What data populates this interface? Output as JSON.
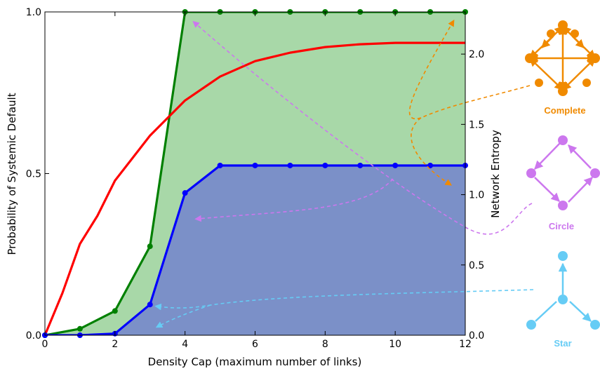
{
  "chart_data": {
    "type": "line",
    "xlabel": "Density Cap (maximum number of links)",
    "ylabel": "Probability of Systemic Default",
    "y2label": "Network Entropy",
    "xlim": [
      0,
      12
    ],
    "ylim": [
      0,
      1
    ],
    "y2lim": [
      0,
      2.3
    ],
    "xticks": [
      "0",
      "2",
      "4",
      "6",
      "8",
      "10",
      "12"
    ],
    "yticks": [
      "0.0",
      "0.5",
      "1.0"
    ],
    "y2ticks": [
      "0.0",
      "0.5",
      "1.0",
      "1.5",
      "2.0"
    ],
    "series": [
      {
        "axis": "left",
        "color": "#008000",
        "fill": "#a8d8a8",
        "markers": true,
        "x": [
          0,
          1,
          2,
          3,
          4,
          5,
          6,
          7,
          8,
          9,
          10,
          11,
          12
        ],
        "y": [
          0,
          0.02,
          0.075,
          0.275,
          1.0,
          1.0,
          1.0,
          1.0,
          1.0,
          1.0,
          1.0,
          1.0,
          1.0
        ]
      },
      {
        "axis": "left",
        "color": "#0000ff",
        "fill": "#7b90c8",
        "markers": true,
        "x": [
          0,
          1,
          2,
          3,
          4,
          5,
          6,
          7,
          8,
          9,
          10,
          11,
          12
        ],
        "y": [
          0,
          0,
          0.005,
          0.095,
          0.44,
          0.525,
          0.525,
          0.525,
          0.525,
          0.525,
          0.525,
          0.525,
          0.525
        ]
      },
      {
        "axis": "right",
        "color": "#ff0000",
        "markers": false,
        "x": [
          0,
          0.5,
          1,
          1.5,
          2,
          3,
          4,
          5,
          6,
          7,
          8,
          9,
          10,
          11,
          12
        ],
        "y": [
          0,
          0.3,
          0.65,
          0.85,
          1.1,
          1.42,
          1.67,
          1.84,
          1.95,
          2.01,
          2.05,
          2.07,
          2.08,
          2.08,
          2.08
        ]
      }
    ]
  },
  "networks": [
    {
      "label": "Complete",
      "color": "#f08a00"
    },
    {
      "label": "Circle",
      "color": "#cc77ee"
    },
    {
      "label": "Star",
      "color": "#66ccf5"
    }
  ]
}
